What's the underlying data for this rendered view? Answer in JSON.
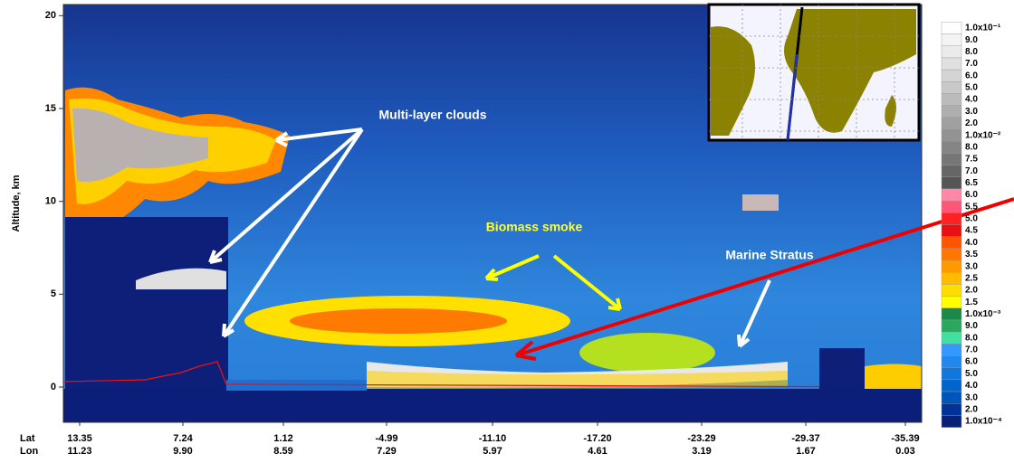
{
  "chart_data": {
    "type": "curtain",
    "y_label": "Altitude, km",
    "ylim": [
      -1.9,
      20.6
    ],
    "yticks": [
      0,
      5,
      10,
      15,
      20
    ],
    "x_row_labels": [
      "Lat",
      "Lon"
    ],
    "lat": [
      "13.35",
      "7.24",
      "1.12",
      "-4.99",
      "-11.10",
      "-17.20",
      "-23.29",
      "-29.37",
      "-35.39"
    ],
    "lon": [
      "11.23",
      "9.90",
      "8.59",
      "7.29",
      "5.97",
      "4.61",
      "3.19",
      "1.67",
      "0.03"
    ],
    "colorbar": {
      "labels": [
        "1.0x10⁻¹",
        "9.0",
        "8.0",
        "7.0",
        "6.0",
        "5.0",
        "4.0",
        "3.0",
        "2.0",
        "1.0x10⁻²",
        "8.0",
        "7.5",
        "7.0",
        "6.5",
        "6.0",
        "5.5",
        "5.0",
        "4.5",
        "4.0",
        "3.5",
        "3.0",
        "2.5",
        "2.0",
        "1.5",
        "1.0x10⁻³",
        "9.0",
        "8.0",
        "7.0",
        "6.0",
        "5.0",
        "4.0",
        "3.0",
        "2.0",
        "1.0x10⁻⁴"
      ],
      "colors": [
        "#ffffff",
        "#f4f4f4",
        "#ebebeb",
        "#e0e0e0",
        "#d4d4d4",
        "#c8c8c8",
        "#bbbbbb",
        "#aeaeae",
        "#a0a0a0",
        "#939393",
        "#858585",
        "#767676",
        "#666666",
        "#555555",
        "#ff88aa",
        "#ff5577",
        "#ff2222",
        "#e81010",
        "#ff5500",
        "#ff7700",
        "#ff9900",
        "#ffbb00",
        "#ffdd00",
        "#ffff00",
        "#1a8a4a",
        "#2aa860",
        "#40e0a0",
        "#3399ff",
        "#2288ee",
        "#1177dd",
        "#0066cc",
        "#0055bb",
        "#003399",
        "#0a1f7a"
      ]
    },
    "annotations": [
      "Multi-layer clouds",
      "Biomass smoke",
      "Marine Stratus"
    ]
  }
}
